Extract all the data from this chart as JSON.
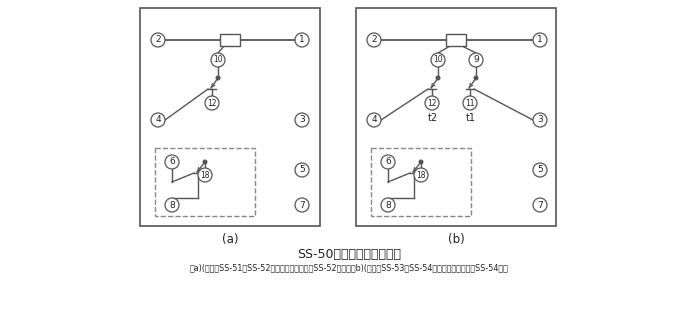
{
  "title": "SS-50系列背后端子接线图",
  "subtitle": "（a)(背视）SS-51、SS-52型，图中虚线部分仅SS-52型有；（b)(背视）SS-53、SS-54型，图中虚线部分仅SS-54型有",
  "label_a": "(a)",
  "label_b": "(b)",
  "bg_color": "#ffffff",
  "line_color": "#555555",
  "text_color": "#222222",
  "dashed_color": "#888888"
}
